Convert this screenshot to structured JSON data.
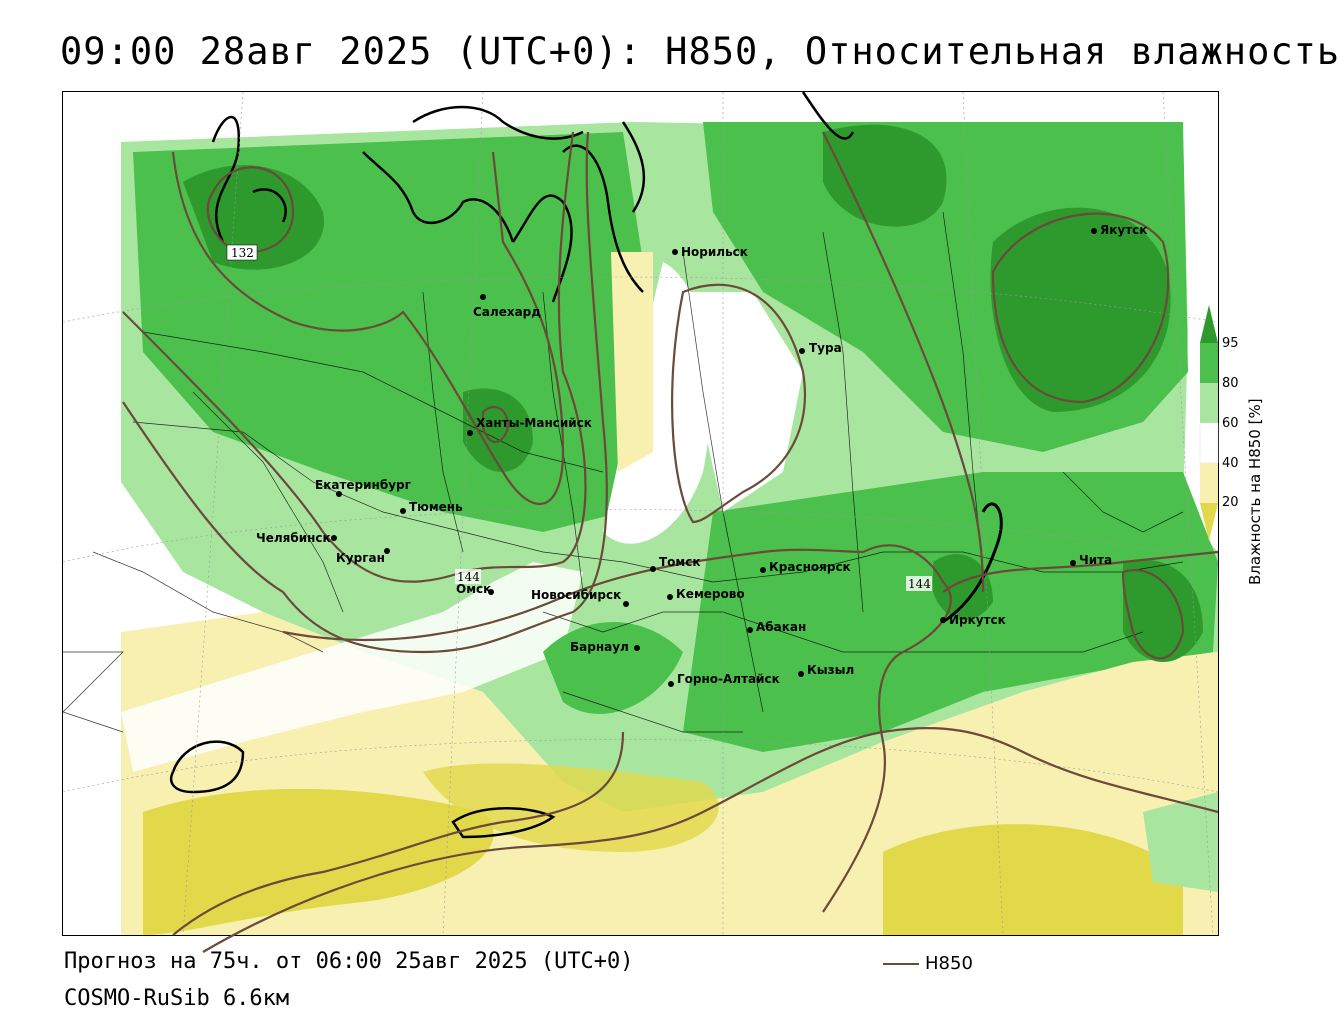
{
  "title": "09:00 28авг 2025 (UTC+0): H850, Относительная влажность",
  "footer": {
    "forecast": "Прогноз на 75ч. от 06:00 25авг 2025 (UTC+0)",
    "model": "COSMO-RuSib 6.6км"
  },
  "legend": {
    "line_label": "H850",
    "line_color": "#6b4a3a"
  },
  "colorbar": {
    "label": "Влажность на H850 [%]",
    "ticks": [
      "95",
      "80",
      "60",
      "40",
      "20"
    ],
    "colors": {
      "above_95": "#2e9a2e",
      "c80_95": "#4cc04c",
      "c60_80": "#a8e6a0",
      "c40_60": "#ffffff",
      "c20_40": "#f7f0b0",
      "below_20": "#e1d84a"
    }
  },
  "cities": [
    {
      "name": "Норильск"
    },
    {
      "name": "Якутск"
    },
    {
      "name": "Салехард"
    },
    {
      "name": "Тура"
    },
    {
      "name": "Ханты-Мансийск"
    },
    {
      "name": "Екатеринбург"
    },
    {
      "name": "Тюмень"
    },
    {
      "name": "Челябинск"
    },
    {
      "name": "Курган"
    },
    {
      "name": "Омск"
    },
    {
      "name": "Новосибирск"
    },
    {
      "name": "Томск"
    },
    {
      "name": "Кемерово"
    },
    {
      "name": "Красноярск"
    },
    {
      "name": "Барнаул"
    },
    {
      "name": "Абакан"
    },
    {
      "name": "Иркутск"
    },
    {
      "name": "Чита"
    },
    {
      "name": "Кызыл"
    },
    {
      "name": "Горно-Алтайск"
    }
  ],
  "contour_labels": [
    "132",
    "144",
    "144"
  ]
}
